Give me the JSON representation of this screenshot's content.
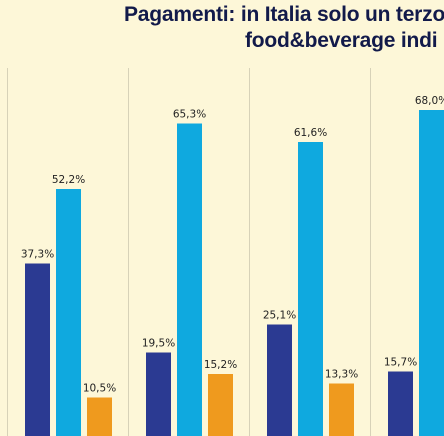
{
  "header": {
    "title_line_1": "Pagamenti: in Italia solo un terzo",
    "title_line_2": "food&beverage indi"
  },
  "colors": {
    "background": "#fdf7d8",
    "gridline": "#d7d2b8",
    "series_dark_blue": "#2b3a92",
    "series_light_blue": "#0fa9df",
    "series_orange": "#ef9a1e"
  },
  "chart_data": {
    "type": "bar",
    "title": "Pagamenti: in Italia solo un terzo food&beverage indi",
    "categories": [
      "",
      "",
      "",
      ""
    ],
    "ylim": [
      0,
      70
    ],
    "grid": "vertical separators",
    "legend": "none",
    "series": [
      {
        "color": "#2b3a92",
        "values": [
          37.3,
          19.5,
          25.1,
          15.7
        ],
        "labels": [
          "37,3%",
          "19,5%",
          "25,1%",
          "15,7%"
        ]
      },
      {
        "color": "#0fa9df",
        "values": [
          52.2,
          65.3,
          61.6,
          68.0
        ],
        "labels": [
          "52,2%",
          "65,3%",
          "61,6%",
          "68,0%"
        ]
      },
      {
        "color": "#ef9a1e",
        "values": [
          10.5,
          15.2,
          13.3,
          null
        ],
        "labels": [
          "10,5%",
          "15,2%",
          "13,3%",
          ""
        ]
      }
    ]
  }
}
